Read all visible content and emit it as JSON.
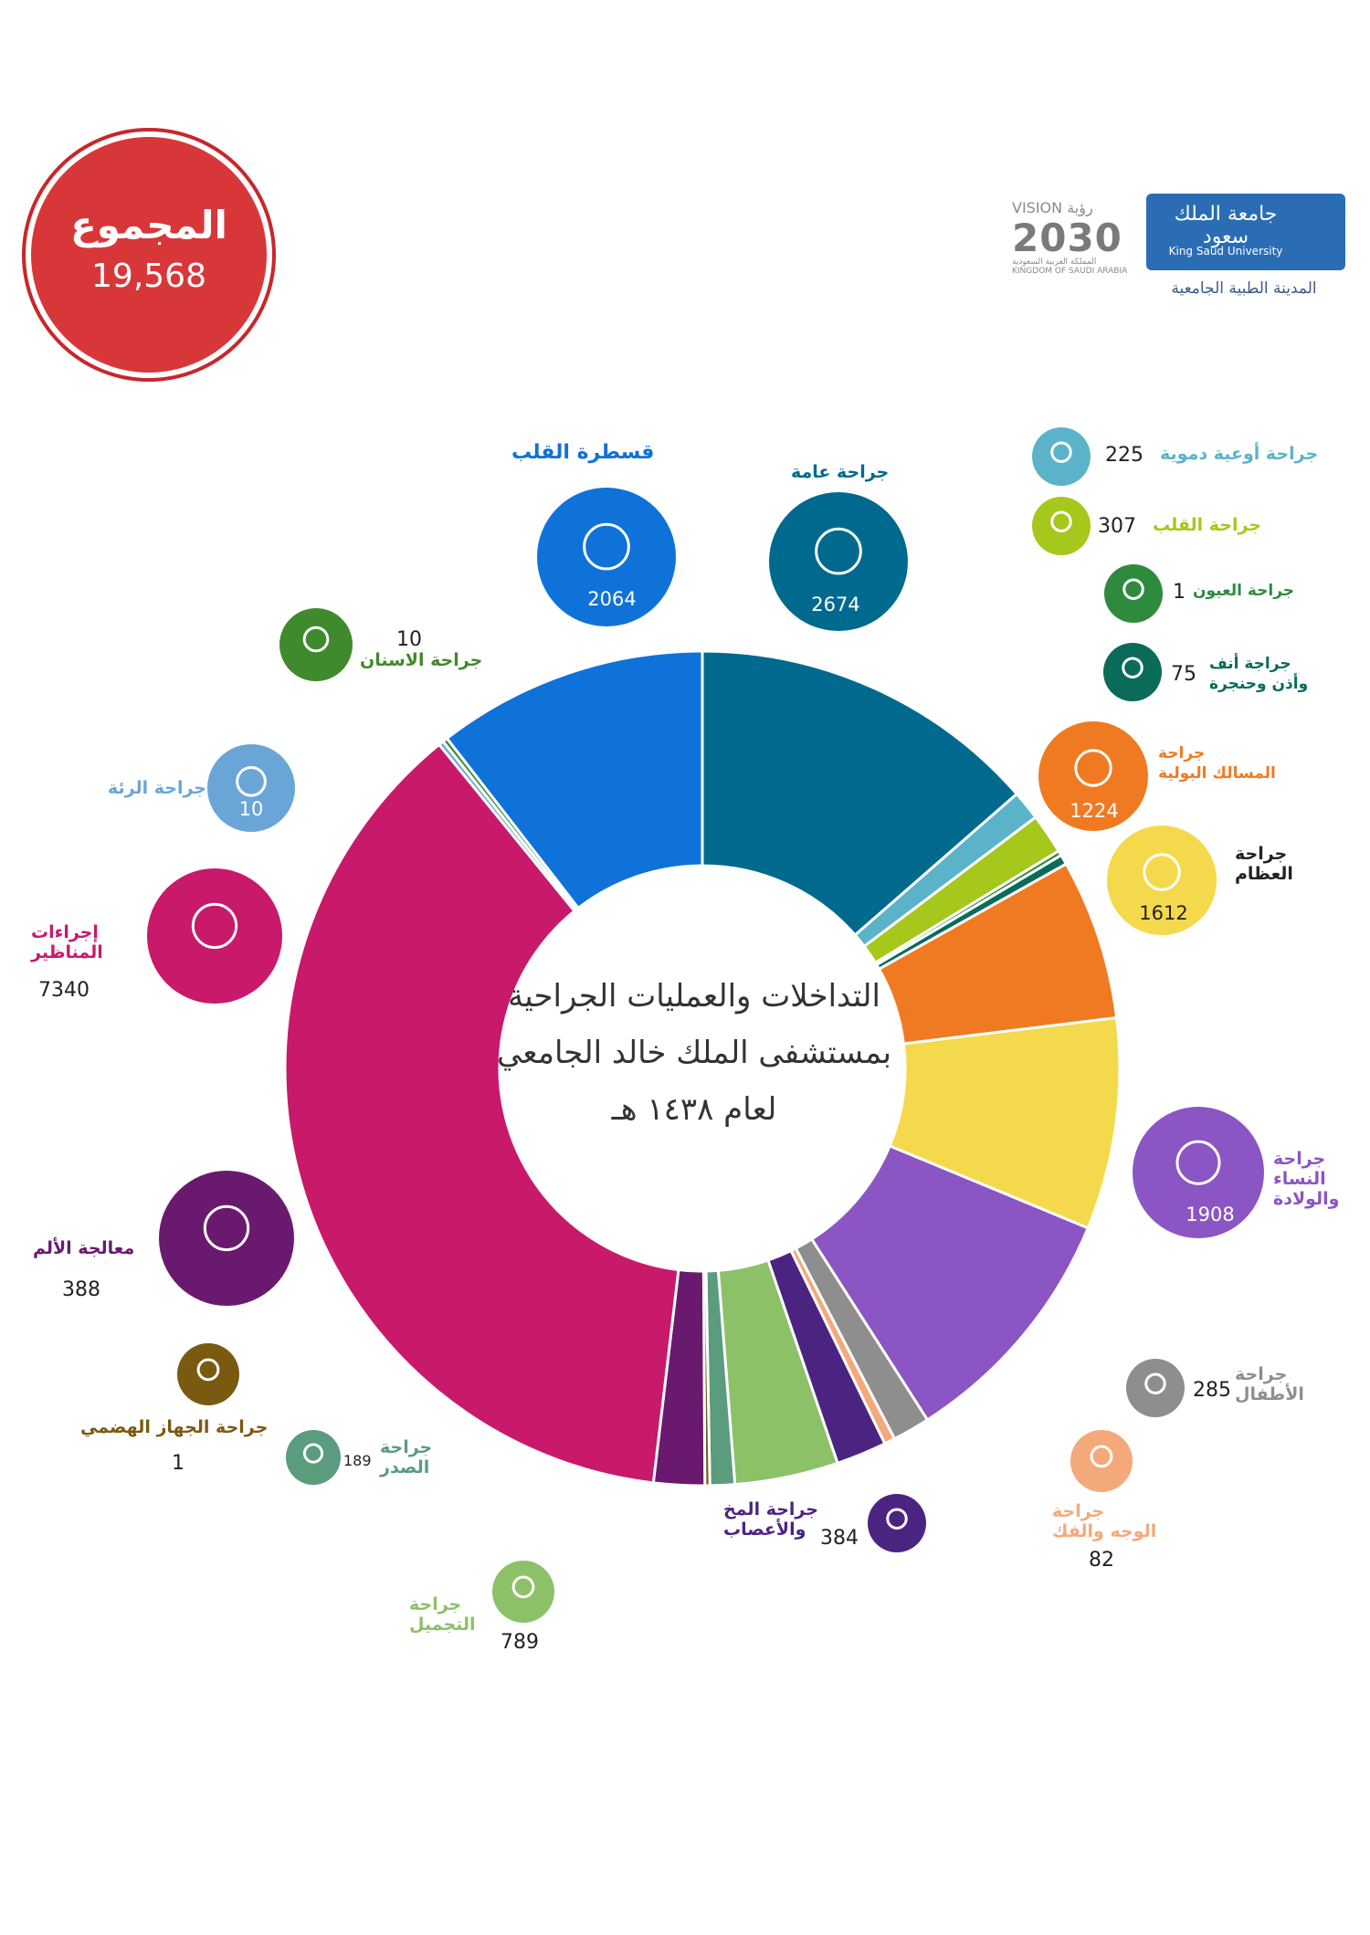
{
  "total": {
    "label": "المجموع",
    "value": "19,568"
  },
  "logos": {
    "ksu_arabic": "جامعة الملك سعود",
    "ksu_english": "King Saud University",
    "ksu_sub": "المدينة الطبية الجامعية",
    "vision_word": "VISION رؤية",
    "vision_year": "2030",
    "vision_sub": "المملكة العربية السعودية KINGDOM OF SAUDI ARABIA"
  },
  "center_title": {
    "line1": "التداخلات والعمليات الجراحية",
    "line2": "بمستشفى الملك خالد الجامعي",
    "line3": "لعام ١٤٣٨ هـ"
  },
  "chart_data": {
    "type": "pie",
    "segments": [
      {
        "name": "جراحة عامة",
        "value": 2674,
        "color": "#006a8e"
      },
      {
        "name": "جراحة أوعية دموية",
        "value": 225,
        "color": "#5bb3c9"
      },
      {
        "name": "جراحة القلب",
        "value": 307,
        "color": "#a6c81c"
      },
      {
        "name": "جراحة العيون",
        "value": 1,
        "color": "#2e8b3e"
      },
      {
        "name": "جراحة أنف وأذن وحنجرة",
        "value": 75,
        "color": "#0a6b5a"
      },
      {
        "name": "جراحة المسالك البولية",
        "value": 1224,
        "color": "#f07a22"
      },
      {
        "name": "جراحة العظام",
        "value": 1612,
        "color": "#f5d94c"
      },
      {
        "name": "جراحة النساء والولادة",
        "value": 1908,
        "color": "#8b55c3"
      },
      {
        "name": "جراحة الأطفال",
        "value": 285,
        "color": "#8e8e8e"
      },
      {
        "name": "جراحة الوجه والفك",
        "value": 82,
        "color": "#f4a97a"
      },
      {
        "name": "جراحة المخ والأعصاب",
        "value": 384,
        "color": "#4b2482"
      },
      {
        "name": "جراحة التجميل",
        "value": 789,
        "color": "#8cc168"
      },
      {
        "name": "جراحة الصدر",
        "value": 189,
        "color": "#5a9c7d"
      },
      {
        "name": "جراحة الجهاز الهضمي",
        "value": 1,
        "color": "#7a5a10"
      },
      {
        "name": "معالجة الألم",
        "value": 388,
        "color": "#6a1a6e"
      },
      {
        "name": "إجراءات المناظير",
        "value": 7340,
        "color": "#c8196a"
      },
      {
        "name": "جراحة الرئة",
        "value": 10,
        "color": "#6aa5d8"
      },
      {
        "name": "جراحة الاسنان",
        "value": 10,
        "color": "#3f8a2c"
      },
      {
        "name": "قسطرة القلب",
        "value": 2064,
        "color": "#0f72d9"
      }
    ]
  },
  "labels": {
    "general": {
      "text": "جراحة عامة",
      "value": "2674"
    },
    "cath": {
      "text": "قسطرة القلب",
      "value": "2064"
    },
    "dental": {
      "text": "جراحة الاسنان",
      "value": "10"
    },
    "lung": {
      "text": "جراحة الرئة",
      "value": "10"
    },
    "endo": {
      "text": "إجراءات\nالمناظير",
      "value": "7340"
    },
    "pain": {
      "text": "معالجة الألم",
      "value": "388"
    },
    "gi": {
      "text": "جراحة الجهاز الهضمي",
      "value": "1"
    },
    "chest": {
      "text": "جراحة\nالصدر",
      "value": "189"
    },
    "cosmetic": {
      "text": "جراحة\nالتجميل",
      "value": "789"
    },
    "neuro": {
      "text": "جراحة المخ\nوالأعصاب",
      "value": "384"
    },
    "face": {
      "text": "جراحة\nالوجه والفك",
      "value": "82"
    },
    "peds": {
      "text": "جراحة\nالأطفال",
      "value": "285"
    },
    "obgyn": {
      "text": "جراحة\nالنساء\nوالولادة",
      "value": "1908"
    },
    "ortho": {
      "text": "جراحة\nالعظام",
      "value": "1612"
    },
    "uro": {
      "text": "جراحة\nالمسالك البولية",
      "value": "1224"
    },
    "ent": {
      "text": "جراجة أنف\nوأذن وحنجرة",
      "value": "75"
    },
    "eye": {
      "text": "جراحة العيون",
      "value": "1"
    },
    "heart": {
      "text": "جراحة القلب",
      "value": "307"
    },
    "vascular": {
      "text": "جراحة أوعية دموية",
      "value": "225"
    }
  },
  "icons": {
    "general": "scalpel-icon",
    "cath": "heart-anatomy-icon",
    "dental": "tooth-icon",
    "lung": "lungs-icon",
    "endo": "endoscopy-icon",
    "pain": "pain-body-icon",
    "gi": "stomach-icon",
    "chest": "chest-ribs-icon",
    "cosmetic": "leg-icon",
    "neuro": "brain-icon",
    "face": "skull-icon",
    "peds": "baby-icon",
    "obgyn": "pregnancy-icon",
    "ortho": "bone-joint-icon",
    "uro": "kidneys-icon",
    "ent": "ear-icon",
    "eye": "eye-icon",
    "heart": "heartbeat-icon",
    "vascular": "vessels-icon"
  }
}
